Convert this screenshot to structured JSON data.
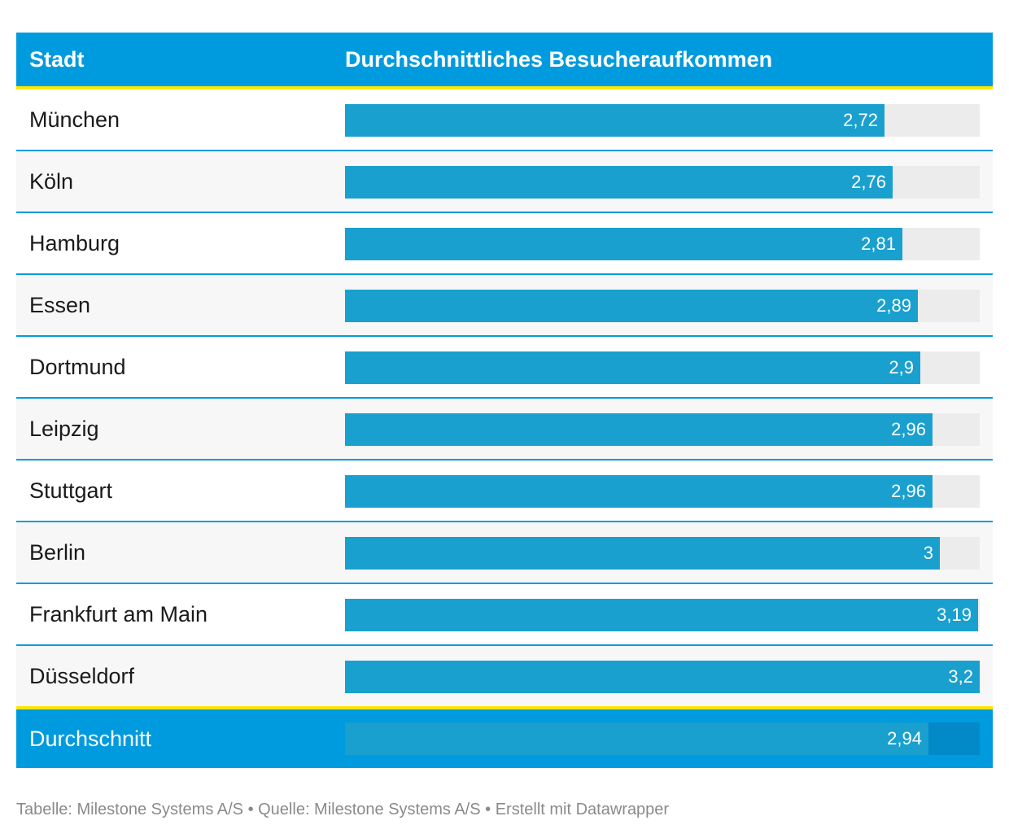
{
  "header": {
    "city_label": "Stadt",
    "value_label": "Durchschnittliches Besucheraufkommen"
  },
  "chart_data": {
    "type": "bar",
    "orientation": "horizontal",
    "categories": [
      "München",
      "Köln",
      "Hamburg",
      "Essen",
      "Dortmund",
      "Leipzig",
      "Stuttgart",
      "Berlin",
      "Frankfurt am Main",
      "Düsseldorf"
    ],
    "values": [
      2.72,
      2.76,
      2.81,
      2.89,
      2.9,
      2.96,
      2.96,
      3,
      3.19,
      3.2
    ],
    "value_labels": [
      "2,72",
      "2,76",
      "2,81",
      "2,89",
      "2,9",
      "2,96",
      "2,96",
      "3",
      "3,19",
      "3,2"
    ],
    "xlim": [
      0,
      3.2
    ],
    "summary": {
      "label": "Durchschnitt",
      "value": 2.94,
      "value_label": "2,94"
    },
    "colors": {
      "header_bg": "#009bde",
      "accent_line": "#ffe600",
      "bar": "#19a0cf",
      "track": "#ececec"
    }
  },
  "footer": {
    "text": "Tabelle: Milestone Systems A/S • Quelle: Milestone Systems A/S • Erstellt mit Datawrapper"
  }
}
